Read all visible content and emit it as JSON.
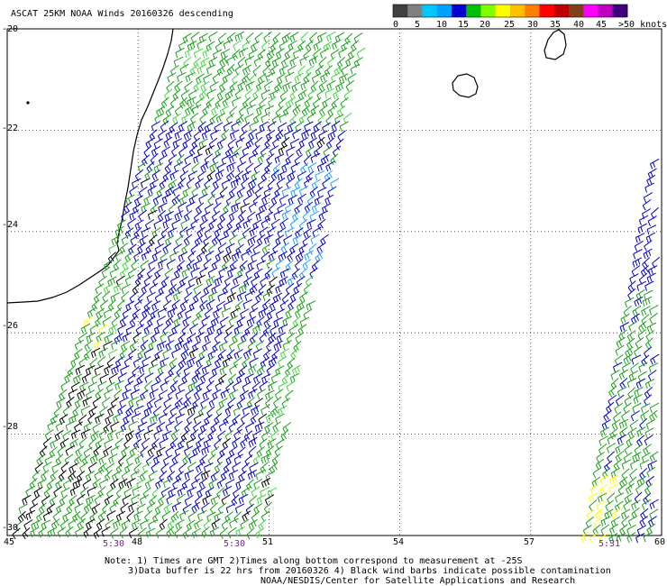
{
  "title": "ASCAT 25KM NOAA Winds 20160326 descending",
  "legend": {
    "labels": [
      "0",
      "5",
      "10",
      "15",
      "20",
      "25",
      "30",
      "35",
      "40",
      "45",
      ">50 knots"
    ],
    "colors": [
      "#404040",
      "#808080",
      "#00c8ff",
      "#00a0ff",
      "#0000d0",
      "#00c000",
      "#80ff00",
      "#ffff00",
      "#ffc000",
      "#ff8000",
      "#ff0000",
      "#c00000",
      "#804020",
      "#ff00ff",
      "#c000c0",
      "#400080"
    ]
  },
  "y_axis_labels": [
    "-20",
    "-22",
    "-24",
    "-26",
    "-28",
    "-30"
  ],
  "x_axis_labels": [
    "45",
    "48",
    "51",
    "54",
    "57",
    "60"
  ],
  "time_labels": [
    "5:30",
    "5:30",
    "5:31"
  ],
  "notes": [
    "Note: 1) Times are GMT 2)Times along bottom correspond to measurement at -25S",
    "3)Data buffer is 22 hrs from 20160326 4) Black wind barbs indicate possible contamination",
    "NOAA/NESDIS/Center for Satellite Applications and Research"
  ],
  "map": {
    "lat_range": [
      -30,
      -20
    ],
    "lon_range": [
      45,
      60
    ],
    "barb_colors": {
      "green": "#1aa01a",
      "light_green": "#44d844",
      "blue": "#0000c8",
      "cyan": "#1ea0ff",
      "yellow": "#ffff00",
      "black": "#000000"
    }
  }
}
